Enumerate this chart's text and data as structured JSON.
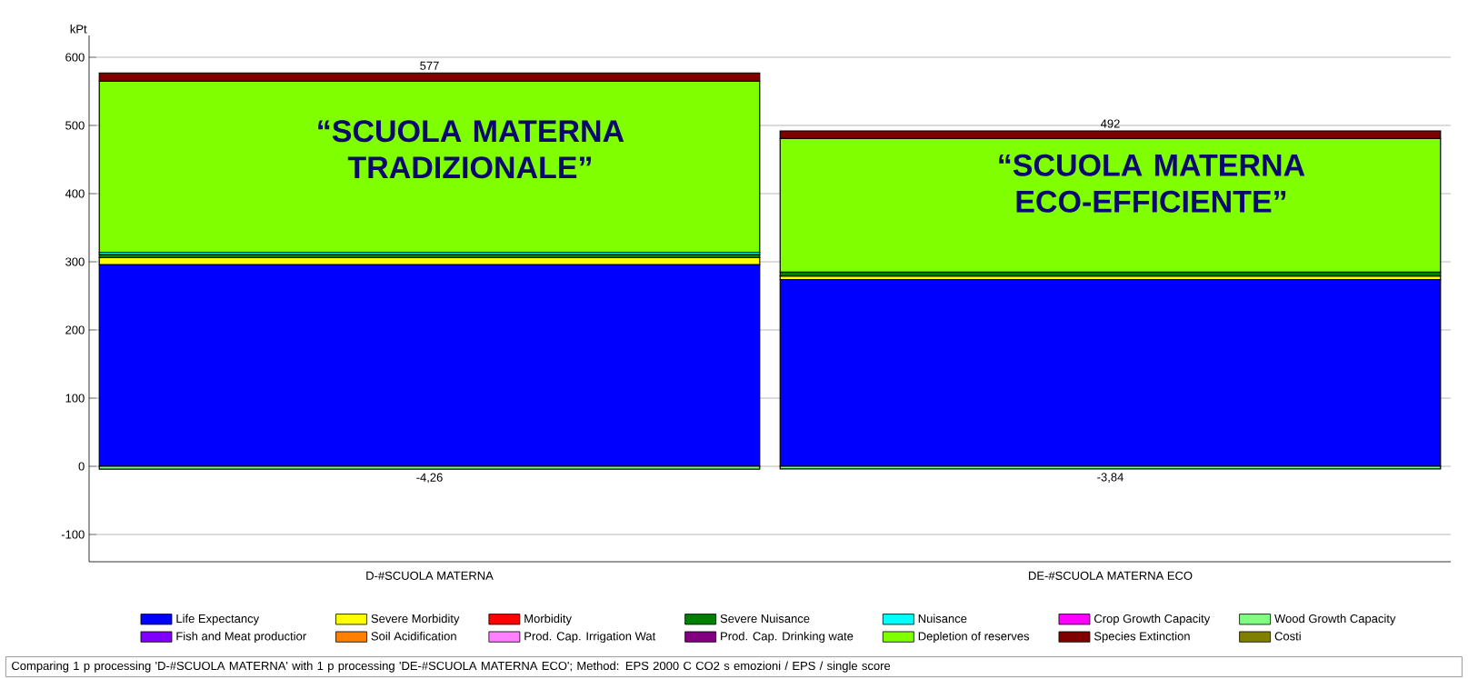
{
  "chart_data": {
    "type": "bar",
    "stacked": true,
    "ylabel": "kPt",
    "categories": [
      "D-#SCUOLA MATERNA",
      "DE-#SCUOLA MATERNA ECO"
    ],
    "series": [
      {
        "name": "Life Expectancy",
        "color": "#0000ff",
        "values": [
          296,
          274
        ]
      },
      {
        "name": "Severe Morbidity",
        "color": "#ffff00",
        "values": [
          10,
          5
        ]
      },
      {
        "name": "Morbidity",
        "color": "#ff0000",
        "values": [
          0,
          0
        ]
      },
      {
        "name": "Severe Nuisance",
        "color": "#008000",
        "values": [
          5,
          6
        ]
      },
      {
        "name": "Nuisance",
        "color": "#00ffff",
        "values": [
          3,
          0
        ]
      },
      {
        "name": "Crop Growth Capacity",
        "color": "#ff00ff",
        "values": [
          0,
          0
        ]
      },
      {
        "name": "Wood Growth Capacity",
        "color": "#80ff80",
        "values": [
          -4.26,
          -3.84
        ],
        "value_labels": [
          "-4,26",
          "-3,84"
        ]
      },
      {
        "name": "Fish and Meat productior",
        "color": "#8000ff",
        "values": [
          0,
          0
        ]
      },
      {
        "name": "Soil Acidification",
        "color": "#ff8000",
        "values": [
          0,
          0
        ]
      },
      {
        "name": "Prod. Cap. Irrigation Wat",
        "color": "#ff80ff",
        "values": [
          0,
          0
        ]
      },
      {
        "name": "Prod. Cap. Drinking wate",
        "color": "#800080",
        "values": [
          0,
          0
        ]
      },
      {
        "name": "Depletion of reserves",
        "color": "#80ff00",
        "values": [
          251,
          196
        ]
      },
      {
        "name": "Species Extinction",
        "color": "#800000",
        "values": [
          12,
          11
        ]
      },
      {
        "name": "Costi",
        "color": "#808000",
        "values": [
          0,
          0
        ]
      }
    ],
    "totals": [
      "577",
      "492"
    ],
    "ylim": [
      -140,
      632
    ],
    "yticks": [
      -100,
      0,
      100,
      200,
      300,
      400,
      500,
      600
    ],
    "grid": "y",
    "legend": "bottom",
    "annotations": [
      "“SCUOLA MATERNA TRADIZIONALE”",
      "“SCUOLA MATERNA ECO-EFFICIENTE”",
      "Comparing 1 p processing 'D-#SCUOLA MATERNA' with 1 p processing 'DE-#SCUOLA MATERNA ECO';  Method: EPS 2000 C CO2 s emozioni /  EPS / single score"
    ]
  }
}
